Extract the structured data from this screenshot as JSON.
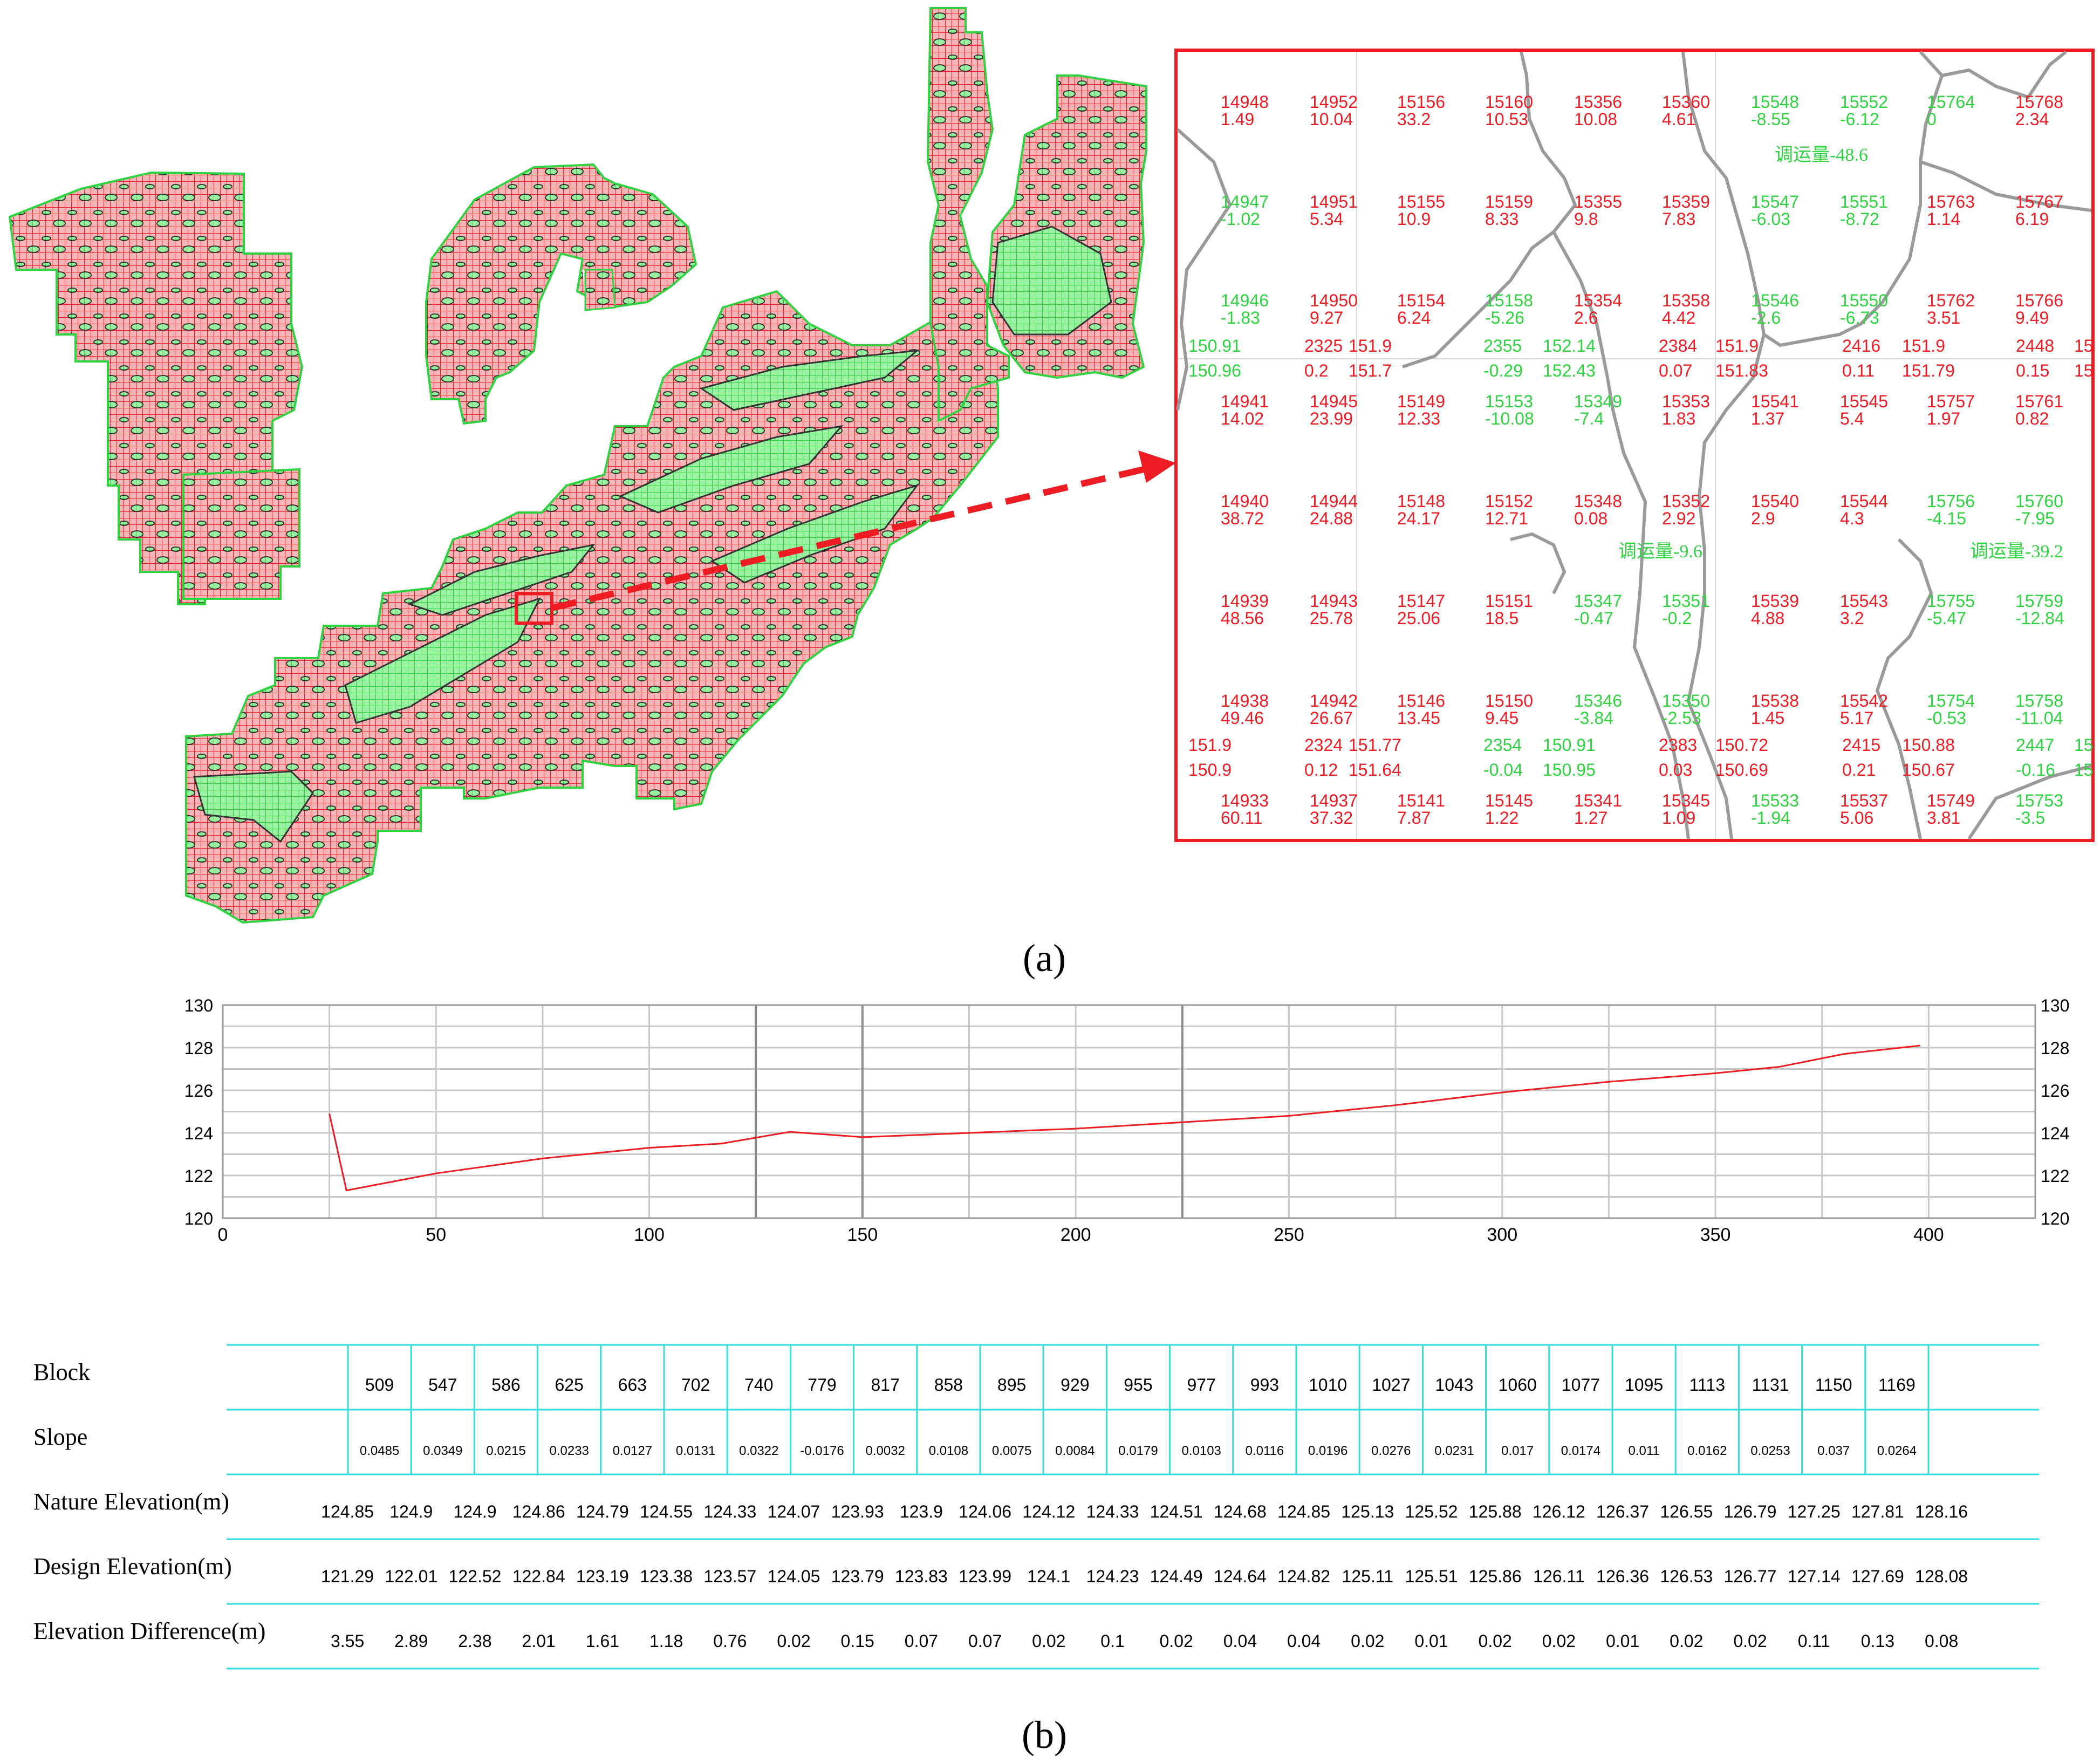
{
  "panel_a": {
    "label": "(a)",
    "transfer_labels": [
      "调运量-48.6",
      "调运量-9.6",
      "调运量-39.2"
    ],
    "grid_rows": [
      [
        [
          "14948",
          "1.49",
          "r"
        ],
        [
          "14952",
          "10.04",
          "r"
        ],
        [
          "15156",
          "33.2",
          "r"
        ],
        [
          "15160",
          "10.53",
          "r"
        ],
        [
          "15356",
          "10.08",
          "r"
        ],
        [
          "15360",
          "4.61",
          "r"
        ],
        [
          "15548",
          "-8.55",
          "g"
        ],
        [
          "15552",
          "-6.12",
          "g"
        ],
        [
          "15764",
          "0",
          "g"
        ],
        [
          "15768",
          "2.34",
          "r"
        ]
      ],
      [
        [
          "14947",
          "-1.02",
          "g"
        ],
        [
          "14951",
          "5.34",
          "r"
        ],
        [
          "15155",
          "10.9",
          "r"
        ],
        [
          "15159",
          "8.33",
          "r"
        ],
        [
          "15355",
          "9.8",
          "r"
        ],
        [
          "15359",
          "7.83",
          "r"
        ],
        [
          "15547",
          "-6.03",
          "g"
        ],
        [
          "15551",
          "-8.72",
          "g"
        ],
        [
          "15763",
          "1.14",
          "r"
        ],
        [
          "15767",
          "6.19",
          "r"
        ]
      ],
      [
        [
          "14946",
          "-1.83",
          "g"
        ],
        [
          "14950",
          "9.27",
          "r"
        ],
        [
          "15154",
          "6.24",
          "r"
        ],
        [
          "15158",
          "-5.26",
          "g"
        ],
        [
          "15354",
          "2.6",
          "r"
        ],
        [
          "15358",
          "4.42",
          "r"
        ],
        [
          "15546",
          "-2.6",
          "g"
        ],
        [
          "15550",
          "-6.73",
          "g"
        ],
        [
          "15762",
          "3.51",
          "r"
        ],
        [
          "15766",
          "9.49",
          "r"
        ]
      ],
      [
        [
          "14941",
          "14.02",
          "r"
        ],
        [
          "14945",
          "23.99",
          "r"
        ],
        [
          "15149",
          "12.33",
          "r"
        ],
        [
          "15153",
          "-10.08",
          "g"
        ],
        [
          "15349",
          "-7.4",
          "g"
        ],
        [
          "15353",
          "1.83",
          "r"
        ],
        [
          "15541",
          "1.37",
          "r"
        ],
        [
          "15545",
          "5.4",
          "r"
        ],
        [
          "15757",
          "1.97",
          "r"
        ],
        [
          "15761",
          "0.82",
          "r"
        ]
      ],
      [
        [
          "14940",
          "38.72",
          "r"
        ],
        [
          "14944",
          "24.88",
          "r"
        ],
        [
          "15148",
          "24.17",
          "r"
        ],
        [
          "15152",
          "12.71",
          "r"
        ],
        [
          "15348",
          "0.08",
          "r"
        ],
        [
          "15352",
          "2.92",
          "r"
        ],
        [
          "15540",
          "2.9",
          "r"
        ],
        [
          "15544",
          "4.3",
          "r"
        ],
        [
          "15756",
          "-4.15",
          "g"
        ],
        [
          "15760",
          "-7.95",
          "g"
        ]
      ],
      [
        [
          "14939",
          "48.56",
          "r"
        ],
        [
          "14943",
          "25.78",
          "r"
        ],
        [
          "15147",
          "25.06",
          "r"
        ],
        [
          "15151",
          "18.5",
          "r"
        ],
        [
          "15347",
          "-0.47",
          "g"
        ],
        [
          "15351",
          "-0.2",
          "g"
        ],
        [
          "15539",
          "4.88",
          "r"
        ],
        [
          "15543",
          "3.2",
          "r"
        ],
        [
          "15755",
          "-5.47",
          "g"
        ],
        [
          "15759",
          "-12.84",
          "g"
        ]
      ],
      [
        [
          "14938",
          "49.46",
          "r"
        ],
        [
          "14942",
          "26.67",
          "r"
        ],
        [
          "15146",
          "13.45",
          "r"
        ],
        [
          "15150",
          "9.45",
          "r"
        ],
        [
          "15346",
          "-3.84",
          "g"
        ],
        [
          "15350",
          "-2.53",
          "g"
        ],
        [
          "15538",
          "1.45",
          "r"
        ],
        [
          "15542",
          "5.17",
          "r"
        ],
        [
          "15754",
          "-0.53",
          "g"
        ],
        [
          "15758",
          "-11.04",
          "g"
        ]
      ],
      [
        [
          "14933",
          "60.11",
          "r"
        ],
        [
          "14937",
          "37.32",
          "r"
        ],
        [
          "15141",
          "7.87",
          "r"
        ],
        [
          "15145",
          "1.22",
          "r"
        ],
        [
          "15341",
          "1.27",
          "r"
        ],
        [
          "15345",
          "1.09",
          "r"
        ],
        [
          "15533",
          "-1.94",
          "g"
        ],
        [
          "15537",
          "5.06",
          "r"
        ],
        [
          "15749",
          "3.81",
          "r"
        ],
        [
          "15753",
          "-3.5",
          "g"
        ]
      ]
    ],
    "node_row_1": [
      [
        "150.91",
        "150.96",
        "g"
      ],
      [
        "2325",
        "0.2",
        "r"
      ],
      [
        "151.9",
        "151.7",
        "r"
      ],
      [
        "2355",
        "-0.29",
        "g"
      ],
      [
        "152.14",
        "152.43",
        "g"
      ],
      [
        "2384",
        "0.07",
        "r"
      ],
      [
        "151.9",
        "151.83",
        "r"
      ],
      [
        "2416",
        "0.11",
        "r"
      ],
      [
        "151.9",
        "151.79",
        "r"
      ],
      [
        "2448",
        "0.15",
        "r"
      ],
      [
        "15",
        "15",
        "r"
      ]
    ],
    "node_row_2": [
      [
        "151.9",
        "150.9",
        "r"
      ],
      [
        "2324",
        "0.12",
        "r"
      ],
      [
        "151.77",
        "151.64",
        "r"
      ],
      [
        "2354",
        "-0.04",
        "g"
      ],
      [
        "150.91",
        "150.95",
        "g"
      ],
      [
        "2383",
        "0.03",
        "r"
      ],
      [
        "150.72",
        "150.69",
        "r"
      ],
      [
        "2415",
        "0.21",
        "r"
      ],
      [
        "150.88",
        "150.67",
        "r"
      ],
      [
        "2447",
        "-0.16",
        "g"
      ],
      [
        "15",
        "15",
        "g"
      ]
    ]
  },
  "panel_b": {
    "label": "(b)",
    "chart_data": {
      "type": "line",
      "x": [
        25,
        29,
        50,
        75,
        100,
        117,
        133,
        150,
        175,
        200,
        225,
        250,
        275,
        300,
        325,
        350,
        365,
        380,
        398
      ],
      "series": [
        {
          "values": [
            124.9,
            121.3,
            122.1,
            122.8,
            123.3,
            123.5,
            124.05,
            123.8,
            124.0,
            124.2,
            124.5,
            124.8,
            125.3,
            125.9,
            126.4,
            126.8,
            127.1,
            127.7,
            128.1
          ]
        }
      ],
      "xlim": [
        0,
        425
      ],
      "ylim": [
        120,
        130
      ],
      "x_ticks": [
        "0",
        "50",
        "100",
        "150",
        "200",
        "250",
        "300",
        "350",
        "400"
      ],
      "y_ticks": [
        "120",
        "122",
        "124",
        "126",
        "128",
        "130"
      ],
      "color": "#ef1c24",
      "grid": true
    },
    "table": {
      "row_labels": [
        "Block",
        "Slope",
        "Nature Elevation(m)",
        "Design Elevation(m)",
        "Elevation Difference(m)"
      ],
      "block": [
        "509",
        "547",
        "586",
        "625",
        "663",
        "702",
        "740",
        "779",
        "817",
        "858",
        "895",
        "929",
        "955",
        "977",
        "993",
        "1010",
        "1027",
        "1043",
        "1060",
        "1077",
        "1095",
        "1113",
        "1131",
        "1150",
        "1169"
      ],
      "slope": [
        "0.0485",
        "0.0349",
        "0.0215",
        "0.0233",
        "0.0127",
        "0.0131",
        "0.0322",
        "-0.0176",
        "0.0032",
        "0.0108",
        "0.0075",
        "0.0084",
        "0.0179",
        "0.0103",
        "0.0116",
        "0.0196",
        "0.0276",
        "0.0231",
        "0.017",
        "0.0174",
        "0.011",
        "0.0162",
        "0.0253",
        "0.037",
        "0.0264"
      ],
      "nature_elevation": [
        "124.85",
        "124.9",
        "124.9",
        "124.86",
        "124.79",
        "124.55",
        "124.33",
        "124.07",
        "123.93",
        "123.9",
        "124.06",
        "124.12",
        "124.33",
        "124.51",
        "124.68",
        "124.85",
        "125.13",
        "125.52",
        "125.88",
        "126.12",
        "126.37",
        "126.55",
        "126.79",
        "127.25",
        "127.81",
        "128.16"
      ],
      "design_elevation": [
        "121.29",
        "122.01",
        "122.52",
        "122.84",
        "123.19",
        "123.38",
        "123.57",
        "124.05",
        "123.79",
        "123.83",
        "123.99",
        "124.1",
        "124.23",
        "124.49",
        "124.64",
        "124.82",
        "125.11",
        "125.51",
        "125.86",
        "126.11",
        "126.36",
        "126.53",
        "126.77",
        "127.14",
        "127.69",
        "128.08"
      ],
      "elevation_difference": [
        "3.55",
        "2.89",
        "2.38",
        "2.01",
        "1.61",
        "1.18",
        "0.76",
        "0.02",
        "0.15",
        "0.07",
        "0.07",
        "0.02",
        "0.1",
        "0.02",
        "0.04",
        "0.04",
        "0.02",
        "0.01",
        "0.02",
        "0.02",
        "0.01",
        "0.02",
        "0.02",
        "0.11",
        "0.13",
        "0.08"
      ]
    }
  },
  "colors": {
    "fill": "#ef1c24",
    "cut": "#2ed33f",
    "table_line": "#33ddd8",
    "grid": "#c8c8c8"
  }
}
